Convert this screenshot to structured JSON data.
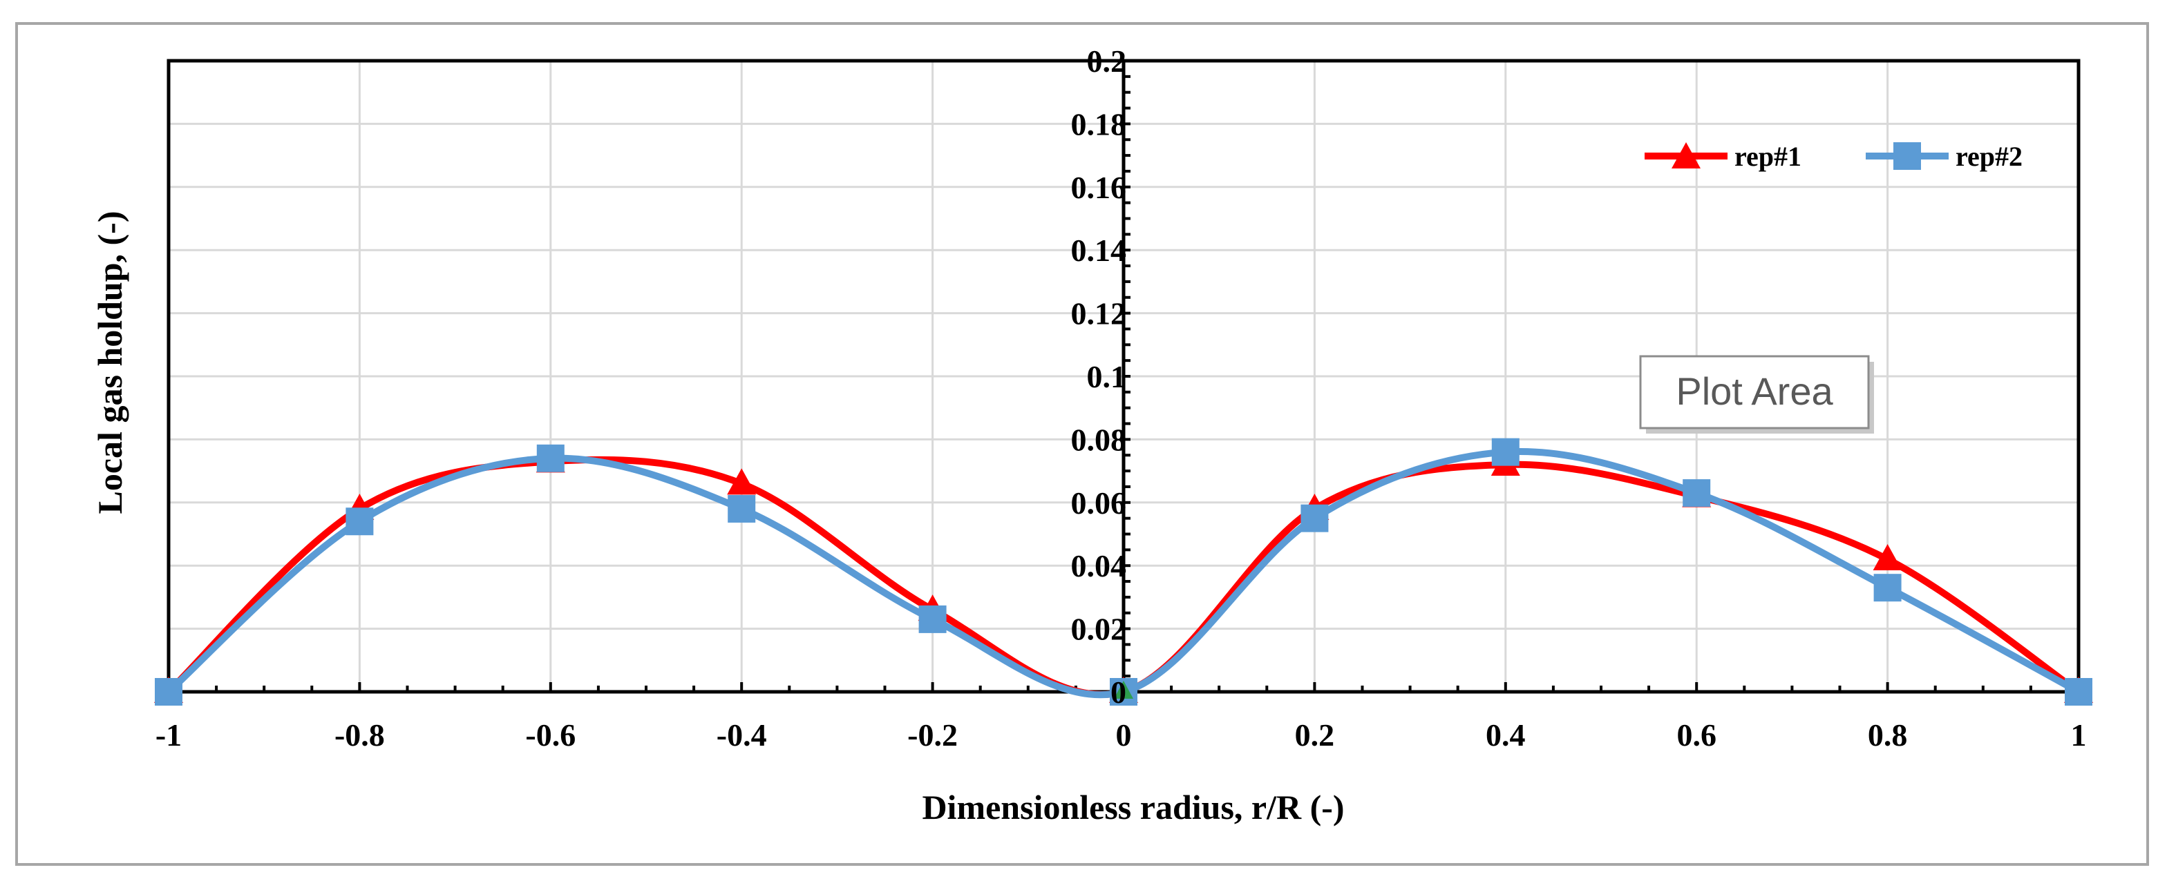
{
  "chart_data": {
    "type": "line",
    "title": "",
    "xlabel": "Dimensionless radius, r/R (-)",
    "ylabel": "Local gas holdup, (-)",
    "xlim": [
      -1,
      1
    ],
    "ylim": [
      0,
      0.2
    ],
    "x_ticks": [
      "-1",
      "-0.8",
      "-0.6",
      "-0.4",
      "-0.2",
      "0",
      "0.2",
      "0.4",
      "0.6",
      "0.8",
      "1"
    ],
    "y_ticks": [
      "0",
      "0.02",
      "0.04",
      "0.06",
      "0.08",
      "0.1",
      "0.12",
      "0.14",
      "0.16",
      "0.18",
      "0.2"
    ],
    "grid": true,
    "legend_position": "top-right",
    "x": [
      -1,
      -0.8,
      -0.6,
      -0.4,
      -0.2,
      0,
      0.2,
      0.4,
      0.6,
      0.8,
      1
    ],
    "series": [
      {
        "name": "rep#1",
        "color": "#ff0000",
        "marker": "triangle",
        "values": [
          0,
          0.058,
          0.073,
          0.066,
          0.026,
          0,
          0.058,
          0.072,
          0.062,
          0.042,
          0
        ]
      },
      {
        "name": "rep#2",
        "color": "#5b9bd5",
        "marker": "square",
        "values": [
          0,
          0.054,
          0.074,
          0.058,
          0.023,
          0,
          0.055,
          0.076,
          0.063,
          0.033,
          0
        ]
      }
    ],
    "origin_marker_color": "#2e9e4f",
    "annotation": "Plot Area"
  }
}
